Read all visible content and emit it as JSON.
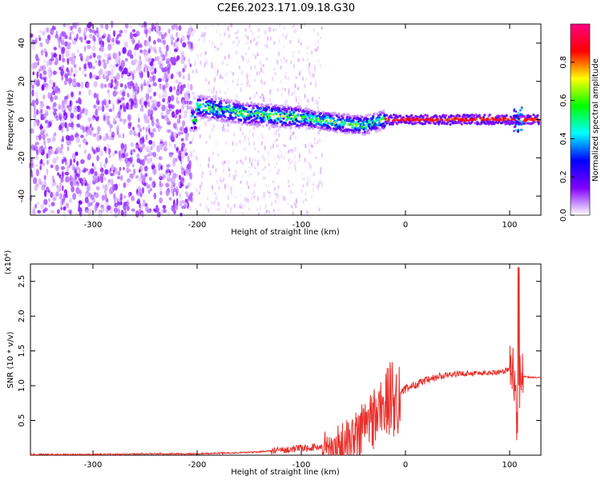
{
  "figure": {
    "title": "C2E6.2023.171.09.18.G30"
  },
  "chart_data": [
    {
      "type": "heatmap",
      "xlabel": "Height of straight line (km)",
      "ylabel": "Frequency (Hz)",
      "xlim": [
        -360,
        130
      ],
      "ylim": [
        -50,
        50
      ],
      "xticks": [
        -300,
        -200,
        -100,
        0,
        100
      ],
      "yticks": [
        -40,
        -20,
        0,
        20,
        40
      ],
      "colorbar": {
        "label": "Normalized spectral amplitude",
        "range": [
          0.0,
          1.0
        ],
        "ticks": [
          0.0,
          0.2,
          0.4,
          0.6,
          0.8
        ],
        "colors": [
          "#ffffff",
          "#8000ff",
          "#0000ff",
          "#00ffff",
          "#00ff00",
          "#ffff00",
          "#ff0000",
          "#ff0080"
        ]
      },
      "features": {
        "noise_region_x": [
          -360,
          -205
        ],
        "sparse_noise_x": [
          -205,
          -80
        ],
        "signal_band": [
          {
            "x": -200,
            "f": 7
          },
          {
            "x": -150,
            "f": 3
          },
          {
            "x": -100,
            "f": 1
          },
          {
            "x": -60,
            "f": -2
          },
          {
            "x": -40,
            "f": -3
          },
          {
            "x": -20,
            "f": 0
          },
          {
            "x": 0,
            "f": 0
          },
          {
            "x": 50,
            "f": 0
          },
          {
            "x": 100,
            "f": 0
          },
          {
            "x": 130,
            "f": 0
          }
        ]
      }
    },
    {
      "type": "line",
      "xlabel": "Height of straight line (km)",
      "ylabel": "SNR (10 * v/v)",
      "y_multiplier": "(x10⁴)",
      "xlim": [
        -360,
        130
      ],
      "ylim": [
        0,
        2.75
      ],
      "xticks": [
        -300,
        -200,
        -100,
        0,
        100
      ],
      "yticks": [
        0.5,
        1.0,
        1.5,
        2.0,
        2.5
      ],
      "color": "#e8302b",
      "series": [
        {
          "x": [
            -360,
            -300,
            -250,
            -200,
            -150,
            -120,
            -100,
            -80,
            -70,
            -60,
            -50,
            -45,
            -40,
            -35,
            -30,
            -25,
            -20,
            -15,
            -10,
            -5,
            0,
            10,
            20,
            30,
            40,
            50,
            60,
            70,
            80,
            90,
            95,
            100,
            103,
            105,
            107,
            108,
            110,
            112,
            115,
            120,
            130
          ],
          "y": [
            0.01,
            0.01,
            0.02,
            0.02,
            0.04,
            0.07,
            0.1,
            0.12,
            0.1,
            0.15,
            0.22,
            0.3,
            0.42,
            0.5,
            0.55,
            0.65,
            0.72,
            0.8,
            0.82,
            0.9,
            0.95,
            1.02,
            1.07,
            1.12,
            1.15,
            1.17,
            1.18,
            1.18,
            1.18,
            1.2,
            1.2,
            1.25,
            1.3,
            1.0,
            0.5,
            0.3,
            1.2,
            1.15,
            1.13,
            1.12,
            1.12
          ]
        }
      ]
    }
  ]
}
